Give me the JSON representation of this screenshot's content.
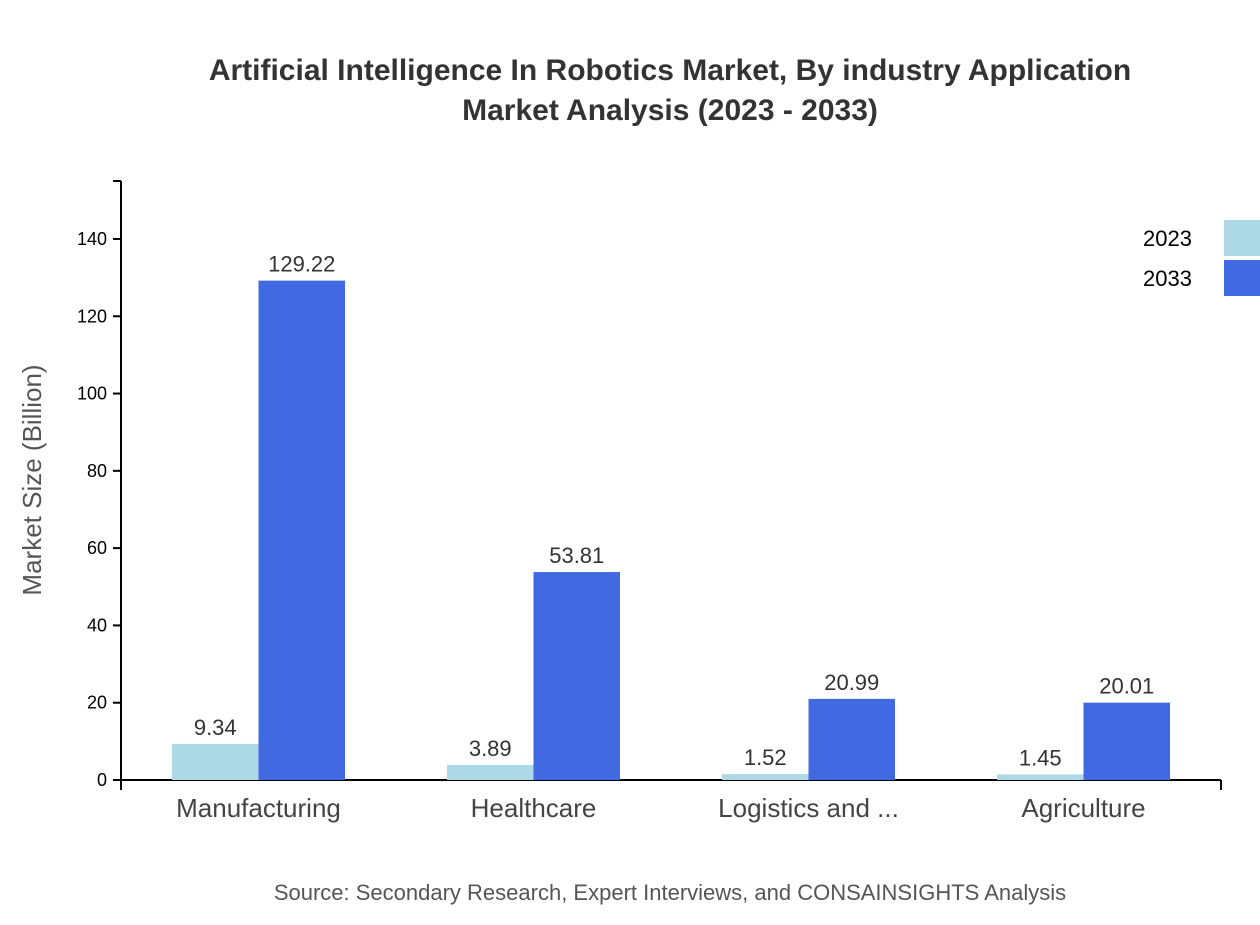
{
  "chart_data": {
    "type": "bar",
    "title_lines": [
      "Artificial Intelligence In Robotics Market, By industry Application",
      "Market Analysis (2023 - 2033)"
    ],
    "xlabel": "",
    "ylabel": "Market Size (Billion)",
    "ylim": [
      0,
      155
    ],
    "yticks": [
      0,
      20,
      40,
      60,
      80,
      100,
      120,
      140
    ],
    "categories": [
      "Manufacturing",
      "Healthcare",
      "Logistics and ...",
      "Agriculture"
    ],
    "series": [
      {
        "name": "2023",
        "color": "#add8e6",
        "values": [
          9.34,
          3.89,
          1.52,
          1.45
        ]
      },
      {
        "name": "2033",
        "color": "#4169e1",
        "values": [
          129.22,
          53.81,
          20.99,
          20.01
        ]
      }
    ],
    "grid": false,
    "legend_position": "top-right",
    "source": "Source: Secondary Research, Expert Interviews, and CONSAINSIGHTS Analysis"
  }
}
